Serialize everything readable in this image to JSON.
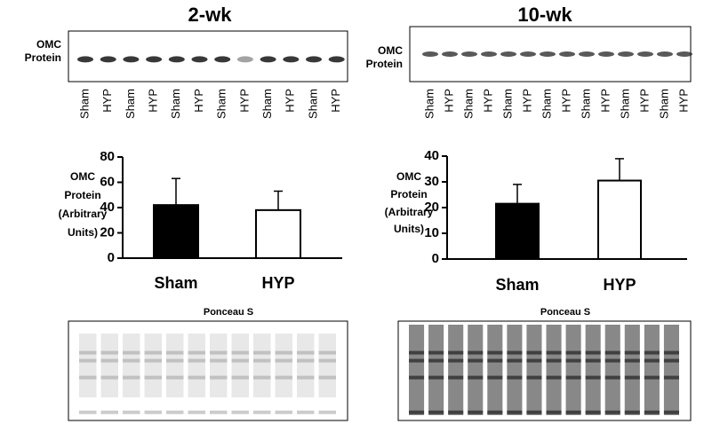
{
  "chart_data": [
    {
      "type": "bar",
      "title": "2-wk",
      "ylabel": [
        "OMC",
        "Protein",
        "(Arbitrary",
        "Units)"
      ],
      "categories": [
        "Sham",
        "HYP"
      ],
      "values": [
        42,
        38
      ],
      "errors": [
        21,
        15
      ],
      "colors": [
        "#000000",
        "#ffffff"
      ],
      "ylim": [
        0,
        80
      ],
      "yticks": [
        0,
        20,
        40,
        60,
        80
      ]
    },
    {
      "type": "bar",
      "title": "10-wk",
      "ylabel": [
        "OMC",
        "Protein",
        "(Arbitrary",
        "Units)"
      ],
      "categories": [
        "Sham",
        "HYP"
      ],
      "values": [
        21.5,
        30.5
      ],
      "errors": [
        7.5,
        8.5
      ],
      "colors": [
        "#000000",
        "#ffffff"
      ],
      "ylim": [
        0,
        40
      ],
      "yticks": [
        0,
        10,
        20,
        30,
        40
      ]
    }
  ],
  "blots": [
    {
      "label": [
        "OMC",
        "Protein"
      ],
      "lanes": [
        "Sham",
        "HYP",
        "Sham",
        "HYP",
        "Sham",
        "HYP",
        "Sham",
        "HYP",
        "Sham",
        "HYP",
        "Sham",
        "HYP"
      ],
      "stain": "Ponceau S"
    },
    {
      "label": [
        "OMC",
        "Protein"
      ],
      "lanes": [
        "Sham",
        "HYP",
        "Sham",
        "HYP",
        "Sham",
        "HYP",
        "Sham",
        "HYP",
        "Sham",
        "HYP",
        "Sham",
        "HYP",
        "Sham",
        "HYP"
      ],
      "stain": "Ponceau S"
    }
  ]
}
